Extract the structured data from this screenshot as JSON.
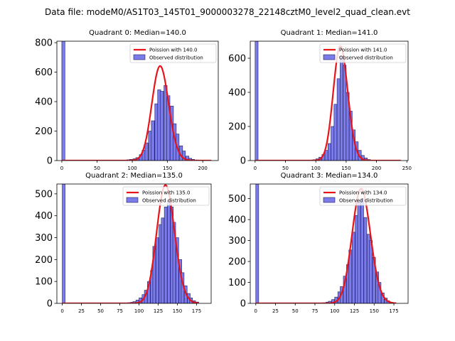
{
  "figure_title": "Data file: modeM0/AS1T03_145T01_9000003278_22148cztM0_level2_quad_clean.evt",
  "colors": {
    "bar_fill": "#7b7bea",
    "bar_edge": "#1f1f5e",
    "curve": "#e8141a",
    "axis": "#000000"
  },
  "chart_data": [
    {
      "type": "bar",
      "title": "Quadrant 0: Median=140.0",
      "legend_position": "top-right",
      "legend": {
        "curve_label": "Poission with 140.0",
        "hist_label": "Observed distribution"
      },
      "xlim": [
        -7,
        222
      ],
      "ylim": [
        0,
        810
      ],
      "xticks": [
        0,
        50,
        100,
        150,
        200
      ],
      "yticks": [
        0,
        200,
        400,
        600,
        800
      ],
      "bin_width": 4.4,
      "bins": [
        [
          0,
          810
        ],
        [
          88,
          3
        ],
        [
          92,
          5
        ],
        [
          96,
          8
        ],
        [
          101,
          12
        ],
        [
          105,
          20
        ],
        [
          110,
          40
        ],
        [
          114,
          70
        ],
        [
          118,
          120
        ],
        [
          123,
          200
        ],
        [
          127,
          270
        ],
        [
          132,
          385
        ],
        [
          136,
          480
        ],
        [
          140,
          470
        ],
        [
          145,
          510
        ],
        [
          149,
          440
        ],
        [
          154,
          370
        ],
        [
          158,
          250
        ],
        [
          162,
          180
        ],
        [
          167,
          100
        ],
        [
          171,
          65
        ],
        [
          176,
          30
        ],
        [
          180,
          15
        ],
        [
          184,
          8
        ],
        [
          189,
          4
        ]
      ],
      "poisson_lambda": 140.0,
      "poisson_scale": 642,
      "curve_range": [
        0,
        212
      ]
    },
    {
      "type": "bar",
      "title": "Quadrant 1: Median=141.0",
      "legend_position": "top-right",
      "legend": {
        "curve_label": "Poission with 141.0",
        "hist_label": "Observed distribution"
      },
      "xlim": [
        -8,
        252
      ],
      "ylim": [
        0,
        700
      ],
      "xticks": [
        0,
        50,
        100,
        150,
        200,
        250
      ],
      "yticks": [
        0,
        200,
        400,
        600
      ],
      "bin_width": 4.9,
      "bins": [
        [
          0,
          700
        ],
        [
          90,
          3
        ],
        [
          95,
          5
        ],
        [
          100,
          10
        ],
        [
          105,
          20
        ],
        [
          110,
          35
        ],
        [
          115,
          60
        ],
        [
          120,
          100
        ],
        [
          125,
          200
        ],
        [
          130,
          330
        ],
        [
          135,
          480
        ],
        [
          140,
          610
        ],
        [
          145,
          560
        ],
        [
          150,
          400
        ],
        [
          155,
          290
        ],
        [
          160,
          180
        ],
        [
          165,
          110
        ],
        [
          170,
          60
        ],
        [
          175,
          30
        ],
        [
          180,
          15
        ],
        [
          185,
          6
        ]
      ],
      "poisson_lambda": 141.0,
      "poisson_scale": 672,
      "curve_range": [
        0,
        240
      ]
    },
    {
      "type": "bar",
      "title": "Quadrant 2: Median=135.0",
      "legend_position": "top-right",
      "legend": {
        "curve_label": "Poission with 135.0",
        "hist_label": "Observed distribution"
      },
      "xlim": [
        -7,
        194
      ],
      "ylim": [
        0,
        545
      ],
      "xticks": [
        0,
        25,
        50,
        75,
        100,
        125,
        150,
        175
      ],
      "yticks": [
        0,
        100,
        200,
        300,
        400,
        500
      ],
      "bin_width": 3.7,
      "bins": [
        [
          0,
          545
        ],
        [
          81,
          2
        ],
        [
          85,
          3
        ],
        [
          89,
          5
        ],
        [
          92,
          8
        ],
        [
          96,
          15
        ],
        [
          100,
          25
        ],
        [
          104,
          40
        ],
        [
          107,
          60
        ],
        [
          111,
          100
        ],
        [
          115,
          150
        ],
        [
          118,
          260
        ],
        [
          122,
          300
        ],
        [
          126,
          360
        ],
        [
          129,
          390
        ],
        [
          133,
          440
        ],
        [
          137,
          470
        ],
        [
          141,
          440
        ],
        [
          144,
          370
        ],
        [
          148,
          300
        ],
        [
          152,
          200
        ],
        [
          155,
          140
        ],
        [
          159,
          80
        ],
        [
          163,
          45
        ],
        [
          166,
          25
        ],
        [
          170,
          12
        ],
        [
          174,
          6
        ]
      ],
      "poisson_lambda": 135.0,
      "poisson_scale": 540,
      "curve_range": [
        0,
        178
      ]
    },
    {
      "type": "bar",
      "title": "Quadrant 3: Median=134.0",
      "legend_position": "top-right",
      "legend": {
        "curve_label": "Poission with 134.0",
        "hist_label": "Observed distribution"
      },
      "xlim": [
        -7,
        193
      ],
      "ylim": [
        0,
        570
      ],
      "xticks": [
        0,
        25,
        50,
        75,
        100,
        125,
        150,
        175
      ],
      "yticks": [
        0,
        100,
        200,
        300,
        400,
        500
      ],
      "bin_width": 3.7,
      "bins": [
        [
          0,
          570
        ],
        [
          81,
          2
        ],
        [
          85,
          3
        ],
        [
          89,
          6
        ],
        [
          92,
          10
        ],
        [
          96,
          18
        ],
        [
          100,
          30
        ],
        [
          104,
          55
        ],
        [
          107,
          80
        ],
        [
          111,
          130
        ],
        [
          115,
          185
        ],
        [
          118,
          255
        ],
        [
          122,
          340
        ],
        [
          126,
          420
        ],
        [
          129,
          490
        ],
        [
          133,
          500
        ],
        [
          137,
          410
        ],
        [
          141,
          330
        ],
        [
          144,
          300
        ],
        [
          148,
          220
        ],
        [
          152,
          150
        ],
        [
          155,
          100
        ],
        [
          159,
          50
        ],
        [
          163,
          25
        ],
        [
          166,
          12
        ],
        [
          170,
          5
        ]
      ],
      "poisson_lambda": 134.0,
      "poisson_scale": 548,
      "curve_range": [
        0,
        178
      ]
    }
  ]
}
